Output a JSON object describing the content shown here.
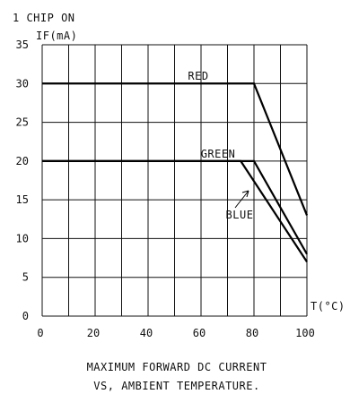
{
  "chart_data": {
    "type": "line",
    "title": "1 CHIP ON",
    "ylabel": "IF(mA)",
    "xlabel": "T(°C)",
    "caption_line1": "MAXIMUM FORWARD DC CURRENT",
    "caption_line2": "VS, AMBIENT TEMPERATURE.",
    "xlim": [
      0,
      100
    ],
    "ylim": [
      0,
      35
    ],
    "x_ticks": [
      0,
      20,
      40,
      60,
      80,
      100
    ],
    "y_ticks": [
      0,
      5,
      10,
      15,
      20,
      25,
      30,
      35
    ],
    "grid": true,
    "series": [
      {
        "name": "RED",
        "x": [
          0,
          80,
          100
        ],
        "y": [
          30,
          30,
          13
        ]
      },
      {
        "name": "GREEN",
        "x": [
          0,
          80,
          100
        ],
        "y": [
          20,
          20,
          8
        ]
      },
      {
        "name": "BLUE",
        "x": [
          0,
          75,
          100
        ],
        "y": [
          20,
          20,
          7
        ]
      }
    ]
  }
}
